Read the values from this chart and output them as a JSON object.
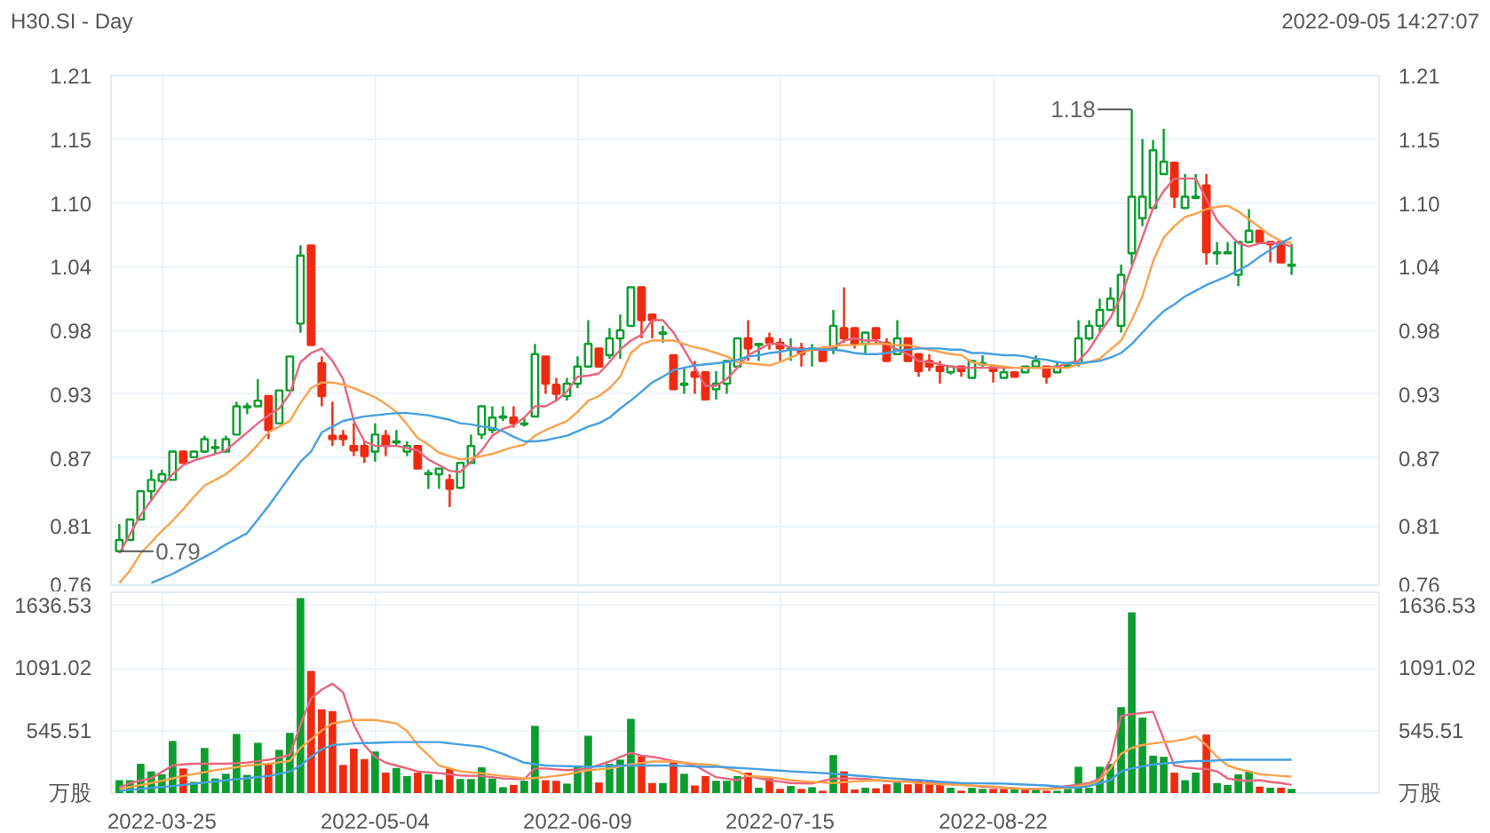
{
  "chart_data": [
    {
      "type": "candlestick",
      "title": "H30.SI - Day",
      "annotations": [
        "2022-09-05 14:27:07",
        "0.79",
        "1.18"
      ],
      "categories": [
        null,
        null,
        null,
        null,
        "2022-03-25",
        null,
        null,
        null,
        null,
        null,
        null,
        null,
        null,
        null,
        null,
        null,
        null,
        null,
        null,
        null,
        null,
        null,
        null,
        null,
        "2022-05-04",
        null,
        null,
        null,
        null,
        null,
        null,
        null,
        null,
        null,
        null,
        null,
        null,
        null,
        null,
        null,
        null,
        null,
        null,
        "2022-06-09",
        null,
        null,
        null,
        null,
        null,
        null,
        null,
        null,
        null,
        null,
        null,
        null,
        null,
        null,
        null,
        null,
        null,
        null,
        "2022-07-15",
        null,
        null,
        null,
        null,
        null,
        null,
        null,
        null,
        null,
        null,
        null,
        null,
        null,
        null,
        null,
        null,
        null,
        null,
        null,
        "2022-08-22",
        null,
        null,
        null,
        null,
        null,
        null,
        null,
        null,
        null,
        null,
        null,
        null,
        null,
        null,
        null,
        null,
        null,
        null,
        null,
        null,
        null,
        null,
        null,
        null,
        null,
        null,
        null,
        null
      ],
      "ohlc": [
        [
          0.79,
          0.814,
          0.79,
          0.8
        ],
        [
          0.8,
          0.818,
          0.8,
          0.818
        ],
        [
          0.818,
          0.843,
          0.818,
          0.843
        ],
        [
          0.843,
          0.862,
          0.834,
          0.853
        ],
        [
          0.852,
          0.862,
          0.85,
          0.858
        ],
        [
          0.853,
          0.878,
          0.853,
          0.878
        ],
        [
          0.878,
          0.878,
          0.868,
          0.868
        ],
        [
          0.873,
          0.878,
          0.873,
          0.878
        ],
        [
          0.878,
          0.892,
          0.877,
          0.889
        ],
        [
          0.881,
          0.889,
          0.875,
          0.882
        ],
        [
          0.878,
          0.892,
          0.878,
          0.889
        ],
        [
          0.893,
          0.922,
          0.893,
          0.918
        ],
        [
          0.917,
          0.921,
          0.911,
          0.918
        ],
        [
          0.918,
          0.942,
          0.918,
          0.923
        ],
        [
          0.927,
          0.927,
          0.889,
          0.897
        ],
        [
          0.903,
          0.932,
          0.903,
          0.932
        ],
        [
          0.932,
          0.962,
          0.932,
          0.962
        ],
        [
          0.991,
          1.06,
          0.983,
          1.051
        ],
        [
          1.06,
          1.06,
          0.972,
          0.972
        ],
        [
          0.956,
          0.962,
          0.918,
          0.927
        ],
        [
          0.892,
          0.922,
          0.883,
          0.889
        ],
        [
          0.892,
          0.897,
          0.883,
          0.889
        ],
        [
          0.883,
          0.903,
          0.874,
          0.879
        ],
        [
          0.883,
          0.887,
          0.868,
          0.874
        ],
        [
          0.878,
          0.903,
          0.869,
          0.893
        ],
        [
          0.892,
          0.897,
          0.874,
          0.883
        ],
        [
          0.886,
          0.897,
          0.883,
          0.887
        ],
        [
          0.878,
          0.887,
          0.874,
          0.883
        ],
        [
          0.883,
          0.883,
          0.863,
          0.863
        ],
        [
          0.858,
          0.862,
          0.845,
          0.859
        ],
        [
          0.858,
          0.863,
          0.845,
          0.863
        ],
        [
          0.853,
          0.858,
          0.829,
          0.845
        ],
        [
          0.846,
          0.868,
          0.845,
          0.868
        ],
        [
          0.868,
          0.893,
          0.868,
          0.883
        ],
        [
          0.893,
          0.918,
          0.889,
          0.918
        ],
        [
          0.897,
          0.918,
          0.894,
          0.908
        ],
        [
          0.908,
          0.918,
          0.905,
          0.909
        ],
        [
          0.908,
          0.918,
          0.899,
          0.903
        ],
        [
          0.902,
          0.908,
          0.9,
          0.903
        ],
        [
          0.909,
          0.973,
          0.909,
          0.964
        ],
        [
          0.962,
          0.962,
          0.929,
          0.938
        ],
        [
          0.937,
          0.943,
          0.923,
          0.929
        ],
        [
          0.927,
          0.943,
          0.923,
          0.938
        ],
        [
          0.938,
          0.962,
          0.934,
          0.953
        ],
        [
          0.953,
          0.994,
          0.953,
          0.973
        ],
        [
          0.969,
          0.969,
          0.953,
          0.953
        ],
        [
          0.963,
          0.987,
          0.96,
          0.978
        ],
        [
          0.978,
          0.999,
          0.96,
          0.985
        ],
        [
          0.989,
          1.023,
          0.989,
          1.023
        ],
        [
          1.023,
          1.023,
          0.978,
          0.994
        ],
        [
          0.999,
          0.999,
          0.978,
          0.994
        ],
        [
          0.982,
          0.989,
          0.974,
          0.983
        ],
        [
          0.963,
          0.963,
          0.933,
          0.933
        ],
        [
          0.937,
          0.952,
          0.929,
          0.938
        ],
        [
          0.948,
          0.958,
          0.929,
          0.944
        ],
        [
          0.948,
          0.948,
          0.924,
          0.924
        ],
        [
          0.933,
          0.949,
          0.924,
          0.938
        ],
        [
          0.938,
          0.958,
          0.929,
          0.958
        ],
        [
          0.953,
          0.978,
          0.952,
          0.978
        ],
        [
          0.978,
          0.994,
          0.958,
          0.969
        ],
        [
          0.972,
          0.973,
          0.958,
          0.973
        ],
        [
          0.978,
          0.983,
          0.968,
          0.974
        ],
        [
          0.974,
          0.978,
          0.958,
          0.969
        ],
        [
          0.968,
          0.978,
          0.958,
          0.969
        ],
        [
          0.969,
          0.974,
          0.953,
          0.964
        ],
        [
          0.968,
          0.973,
          0.953,
          0.969
        ],
        [
          0.969,
          0.969,
          0.958,
          0.958
        ],
        [
          0.969,
          1.003,
          0.964,
          0.989
        ],
        [
          0.987,
          1.023,
          0.974,
          0.978
        ],
        [
          0.987,
          0.987,
          0.969,
          0.973
        ],
        [
          0.973,
          0.983,
          0.964,
          0.983
        ],
        [
          0.987,
          0.987,
          0.974,
          0.978
        ],
        [
          0.974,
          0.978,
          0.958,
          0.958
        ],
        [
          0.964,
          0.994,
          0.964,
          0.978
        ],
        [
          0.978,
          0.978,
          0.958,
          0.958
        ],
        [
          0.964,
          0.964,
          0.944,
          0.949
        ],
        [
          0.958,
          0.964,
          0.949,
          0.953
        ],
        [
          0.953,
          0.958,
          0.938,
          0.949
        ],
        [
          0.948,
          0.953,
          0.946,
          0.953
        ],
        [
          0.953,
          0.953,
          0.944,
          0.949
        ],
        [
          0.943,
          0.958,
          0.943,
          0.958
        ],
        [
          0.955,
          0.963,
          0.953,
          0.956
        ],
        [
          0.953,
          0.953,
          0.939,
          0.949
        ],
        [
          0.943,
          0.952,
          0.943,
          0.948
        ],
        [
          0.948,
          0.948,
          0.944,
          0.944
        ],
        [
          0.948,
          0.953,
          0.948,
          0.953
        ],
        [
          0.953,
          0.963,
          0.953,
          0.958
        ],
        [
          0.953,
          0.953,
          0.938,
          0.944
        ],
        [
          0.948,
          0.958,
          0.948,
          0.953
        ],
        [
          0.953,
          0.955,
          0.952,
          0.954
        ],
        [
          0.956,
          0.994,
          0.953,
          0.978
        ],
        [
          0.978,
          0.994,
          0.976,
          0.989
        ],
        [
          0.989,
          1.013,
          0.983,
          1.003
        ],
        [
          1.003,
          1.023,
          1.003,
          1.013
        ],
        [
          0.989,
          1.043,
          0.983,
          1.034
        ],
        [
          1.053,
          1.18,
          1.043,
          1.103
        ],
        [
          1.084,
          1.154,
          1.077,
          1.103
        ],
        [
          1.093,
          1.153,
          1.093,
          1.144
        ],
        [
          1.123,
          1.163,
          1.123,
          1.134
        ],
        [
          1.133,
          1.133,
          1.093,
          1.103
        ],
        [
          1.093,
          1.123,
          1.093,
          1.103
        ],
        [
          1.102,
          1.123,
          1.102,
          1.103
        ],
        [
          1.113,
          1.123,
          1.043,
          1.054
        ],
        [
          1.053,
          1.063,
          1.043,
          1.054
        ],
        [
          1.053,
          1.063,
          1.053,
          1.054
        ],
        [
          1.034,
          1.063,
          1.024,
          1.063
        ],
        [
          1.063,
          1.092,
          1.062,
          1.073
        ],
        [
          1.073,
          1.073,
          1.063,
          1.063
        ],
        [
          1.063,
          1.063,
          1.045,
          1.061
        ],
        [
          1.063,
          1.063,
          1.045,
          1.045
        ],
        [
          1.042,
          1.061,
          1.034,
          1.043
        ]
      ],
      "colors": [
        "#0c9d2f",
        "#0c9d2f",
        "#0c9d2f",
        "#0c9d2f",
        "#0c9d2f",
        "#0c9d2f",
        "#ee2b10",
        "#0c9d2f",
        "#0c9d2f",
        "#0c9d2f",
        "#0c9d2f",
        "#0c9d2f",
        "#0c9d2f",
        "#0c9d2f",
        "#ee2b10",
        "#0c9d2f",
        "#0c9d2f",
        "#0c9d2f",
        "#ee2b10",
        "#ee2b10",
        "#ee2b10",
        "#ee2b10",
        "#ee2b10",
        "#ee2b10",
        "#0c9d2f",
        "#ee2b10",
        "#0c9d2f",
        "#0c9d2f",
        "#ee2b10",
        "#0c9d2f",
        "#0c9d2f",
        "#ee2b10",
        "#0c9d2f",
        "#0c9d2f",
        "#0c9d2f",
        "#0c9d2f",
        "#0c9d2f",
        "#ee2b10",
        "#0c9d2f",
        "#0c9d2f",
        "#ee2b10",
        "#ee2b10",
        "#0c9d2f",
        "#0c9d2f",
        "#0c9d2f",
        "#ee2b10",
        "#0c9d2f",
        "#0c9d2f",
        "#0c9d2f",
        "#ee2b10",
        "#ee2b10",
        "#0c9d2f",
        "#ee2b10",
        "#0c9d2f",
        "#ee2b10",
        "#ee2b10",
        "#0c9d2f",
        "#0c9d2f",
        "#0c9d2f",
        "#ee2b10",
        "#0c9d2f",
        "#ee2b10",
        "#ee2b10",
        "#0c9d2f",
        "#ee2b10",
        "#0c9d2f",
        "#ee2b10",
        "#0c9d2f",
        "#ee2b10",
        "#ee2b10",
        "#0c9d2f",
        "#ee2b10",
        "#ee2b10",
        "#0c9d2f",
        "#ee2b10",
        "#ee2b10",
        "#ee2b10",
        "#ee2b10",
        "#0c9d2f",
        "#ee2b10",
        "#0c9d2f",
        "#0c9d2f",
        "#ee2b10",
        "#0c9d2f",
        "#ee2b10",
        "#0c9d2f",
        "#0c9d2f",
        "#ee2b10",
        "#0c9d2f",
        "#0c9d2f",
        "#0c9d2f",
        "#0c9d2f",
        "#0c9d2f",
        "#0c9d2f",
        "#0c9d2f",
        "#0c9d2f",
        "#0c9d2f",
        "#0c9d2f",
        "#0c9d2f",
        "#ee2b10",
        "#0c9d2f",
        "#0c9d2f",
        "#ee2b10",
        "#0c9d2f",
        "#0c9d2f",
        "#0c9d2f",
        "#0c9d2f",
        "#ee2b10",
        "#ee2b10",
        "#ee2b10",
        "#0c9d2f"
      ],
      "series": [
        {
          "type": "line",
          "color": "#e8667e",
          "values": [
            0.788,
            0.805,
            0.822,
            0.835,
            0.848,
            0.858,
            0.866,
            0.87,
            0.873,
            0.876,
            0.879,
            0.887,
            0.895,
            0.903,
            0.91,
            0.916,
            0.929,
            0.957,
            0.965,
            0.969,
            0.958,
            0.942,
            0.905,
            0.887,
            0.883,
            0.883,
            0.883,
            0.881,
            0.879,
            0.871,
            0.866,
            0.861,
            0.86,
            0.869,
            0.879,
            0.892,
            0.898,
            0.901,
            0.908,
            0.918,
            0.918,
            0.923,
            0.931,
            0.944,
            0.945,
            0.947,
            0.957,
            0.968,
            0.976,
            0.981,
            0.994,
            0.994,
            0.983,
            0.968,
            0.952,
            0.936,
            0.936,
            0.942,
            0.952,
            0.963,
            0.968,
            0.973,
            0.973,
            0.97,
            0.968,
            0.968,
            0.968,
            0.97,
            0.976,
            0.978,
            0.976,
            0.976,
            0.973,
            0.968,
            0.964,
            0.958,
            0.957,
            0.955,
            0.953,
            0.952,
            0.952,
            0.952,
            0.952,
            0.952,
            0.952,
            0.952,
            0.952,
            0.952,
            0.953,
            0.956,
            0.958,
            0.968,
            0.983,
            0.996,
            1.015,
            1.041,
            1.067,
            1.093,
            1.108,
            1.119,
            1.119,
            1.119,
            1.101,
            1.082,
            1.072,
            1.062,
            1.059,
            1.062,
            1.062,
            1.062,
            1.059
          ]
        },
        {
          "type": "line",
          "color": "#fba24c",
          "values": [
            0.762,
            0.773,
            0.788,
            0.798,
            0.808,
            0.817,
            0.827,
            0.838,
            0.848,
            0.853,
            0.858,
            0.866,
            0.874,
            0.884,
            0.895,
            0.9,
            0.905,
            0.921,
            0.934,
            0.939,
            0.939,
            0.937,
            0.934,
            0.93,
            0.926,
            0.92,
            0.913,
            0.902,
            0.89,
            0.884,
            0.877,
            0.874,
            0.871,
            0.872,
            0.874,
            0.876,
            0.879,
            0.882,
            0.884,
            0.892,
            0.897,
            0.901,
            0.905,
            0.913,
            0.923,
            0.927,
            0.934,
            0.944,
            0.965,
            0.973,
            0.976,
            0.976,
            0.976,
            0.973,
            0.97,
            0.968,
            0.965,
            0.962,
            0.957,
            0.956,
            0.955,
            0.954,
            0.957,
            0.961,
            0.965,
            0.968,
            0.97,
            0.971,
            0.972,
            0.972,
            0.973,
            0.973,
            0.973,
            0.972,
            0.972,
            0.97,
            0.968,
            0.966,
            0.964,
            0.963,
            0.957,
            0.955,
            0.954,
            0.953,
            0.952,
            0.952,
            0.952,
            0.952,
            0.952,
            0.952,
            0.955,
            0.957,
            0.96,
            0.968,
            0.976,
            0.994,
            1.015,
            1.046,
            1.067,
            1.077,
            1.085,
            1.088,
            1.092,
            1.094,
            1.095,
            1.09,
            1.083,
            1.076,
            1.069,
            1.064,
            1.062
          ]
        },
        {
          "type": "line",
          "color": "#46a0e0",
          "values": [
            null,
            null,
            null,
            0.762,
            0.766,
            0.77,
            0.775,
            0.78,
            0.785,
            0.79,
            0.796,
            0.801,
            0.806,
            0.818,
            0.83,
            0.843,
            0.856,
            0.869,
            0.878,
            0.895,
            0.9,
            0.905,
            0.907,
            0.909,
            0.91,
            0.911,
            0.912,
            0.912,
            0.911,
            0.91,
            0.908,
            0.906,
            0.903,
            0.902,
            0.9,
            0.899,
            0.896,
            0.891,
            0.887,
            0.887,
            0.888,
            0.89,
            0.892,
            0.896,
            0.9,
            0.903,
            0.908,
            0.916,
            0.923,
            0.931,
            0.939,
            0.944,
            0.95,
            0.952,
            0.954,
            0.955,
            0.956,
            0.957,
            0.959,
            0.962,
            0.963,
            0.965,
            0.966,
            0.968,
            0.968,
            0.969,
            0.968,
            0.968,
            0.967,
            0.965,
            0.964,
            0.964,
            0.965,
            0.967,
            0.968,
            0.969,
            0.969,
            0.969,
            0.968,
            0.968,
            0.965,
            0.965,
            0.964,
            0.963,
            0.963,
            0.962,
            0.96,
            0.959,
            0.957,
            0.956,
            0.956,
            0.957,
            0.958,
            0.961,
            0.965,
            0.973,
            0.983,
            0.993,
            1.002,
            1.008,
            1.015,
            1.02,
            1.025,
            1.029,
            1.033,
            1.038,
            1.043,
            1.05,
            1.056,
            1.062,
            1.067
          ]
        }
      ],
      "ylim": [
        0.76,
        1.21
      ],
      "yticks": [
        0.76,
        {
          "value": 0.8125,
          "label": "0.81"
        },
        {
          "value": 0.8725,
          "label": "0.87"
        },
        {
          "value": 0.92875,
          "label": "0.93"
        },
        {
          "value": 0.985,
          "label": "0.98"
        },
        {
          "value": 1.04125,
          "label": "1.04"
        },
        {
          "value": 1.0975,
          "label": "1.10"
        },
        {
          "value": 1.15375,
          "label": "1.15"
        },
        1.21
      ],
      "y2lim": [
        0.76,
        1.21
      ],
      "y2ticks": [
        0.76,
        {
          "value": 0.8125,
          "label": "0.81"
        },
        {
          "value": 0.8725,
          "label": "0.87"
        },
        {
          "value": 0.92875,
          "label": "0.93"
        },
        {
          "value": 0.985,
          "label": "0.98"
        },
        {
          "value": 1.04125,
          "label": "1.04"
        },
        {
          "value": 1.0975,
          "label": "1.10"
        },
        {
          "value": 1.15375,
          "label": "1.15"
        },
        1.21
      ],
      "grid": true,
      "tick_labels": "y"
    },
    {
      "type": "bar",
      "categories": [
        null,
        null,
        null,
        null,
        "2022-03-25",
        null,
        null,
        null,
        null,
        null,
        null,
        null,
        null,
        null,
        null,
        null,
        null,
        null,
        null,
        null,
        null,
        null,
        null,
        null,
        "2022-05-04",
        null,
        null,
        null,
        null,
        null,
        null,
        null,
        null,
        null,
        null,
        null,
        null,
        null,
        null,
        null,
        null,
        null,
        null,
        "2022-06-09",
        null,
        null,
        null,
        null,
        null,
        null,
        null,
        null,
        null,
        null,
        null,
        null,
        null,
        null,
        null,
        null,
        null,
        null,
        "2022-07-15",
        null,
        null,
        null,
        null,
        null,
        null,
        null,
        null,
        null,
        null,
        null,
        null,
        null,
        null,
        null,
        null,
        null,
        null,
        null,
        "2022-08-22",
        null,
        null,
        null,
        null,
        null,
        null,
        null,
        null,
        null,
        null,
        null,
        null,
        null,
        null,
        null,
        null,
        null,
        null,
        null,
        null,
        null,
        null,
        null,
        null,
        null,
        null,
        null,
        null
      ],
      "series": [
        {
          "values": [
            112,
            112,
            255,
            189,
            163,
            454,
            214,
            97,
            393,
            127,
            168,
            515,
            158,
            438,
            255,
            377,
            525,
            1700,
            1065,
            729,
            714,
            245,
            387,
            296,
            362,
            178,
            219,
            148,
            178,
            163,
            117,
            214,
            122,
            122,
            224,
            127,
            51,
            71,
            107,
            586,
            112,
            107,
            82,
            235,
            500,
            92,
            255,
            291,
            647,
            321,
            87,
            87,
            275,
            168,
            66,
            148,
            107,
            107,
            148,
            178,
            46,
            138,
            36,
            61,
            36,
            51,
            20,
            331,
            189,
            31,
            46,
            41,
            76,
            102,
            76,
            112,
            112,
            87,
            46,
            20,
            46,
            36,
            36,
            36,
            36,
            36,
            36,
            20,
            20,
            36,
            229,
            46,
            229,
            255,
            749,
            1575,
            658,
            326,
            316,
            178,
            112,
            178,
            510,
            87,
            71,
            163,
            189,
            56,
            46,
            46,
            36
          ],
          "colors": [
            "#0c9d2f",
            "#0c9d2f",
            "#0c9d2f",
            "#0c9d2f",
            "#0c9d2f",
            "#0c9d2f",
            "#ee2b10",
            "#0c9d2f",
            "#0c9d2f",
            "#0c9d2f",
            "#0c9d2f",
            "#0c9d2f",
            "#0c9d2f",
            "#0c9d2f",
            "#ee2b10",
            "#0c9d2f",
            "#0c9d2f",
            "#0c9d2f",
            "#ee2b10",
            "#ee2b10",
            "#ee2b10",
            "#ee2b10",
            "#ee2b10",
            "#ee2b10",
            "#0c9d2f",
            "#ee2b10",
            "#0c9d2f",
            "#0c9d2f",
            "#ee2b10",
            "#0c9d2f",
            "#0c9d2f",
            "#ee2b10",
            "#0c9d2f",
            "#0c9d2f",
            "#0c9d2f",
            "#0c9d2f",
            "#0c9d2f",
            "#ee2b10",
            "#0c9d2f",
            "#0c9d2f",
            "#ee2b10",
            "#ee2b10",
            "#0c9d2f",
            "#0c9d2f",
            "#0c9d2f",
            "#ee2b10",
            "#0c9d2f",
            "#0c9d2f",
            "#0c9d2f",
            "#ee2b10",
            "#ee2b10",
            "#0c9d2f",
            "#ee2b10",
            "#0c9d2f",
            "#ee2b10",
            "#ee2b10",
            "#0c9d2f",
            "#0c9d2f",
            "#0c9d2f",
            "#ee2b10",
            "#0c9d2f",
            "#ee2b10",
            "#ee2b10",
            "#0c9d2f",
            "#ee2b10",
            "#0c9d2f",
            "#ee2b10",
            "#0c9d2f",
            "#ee2b10",
            "#ee2b10",
            "#0c9d2f",
            "#ee2b10",
            "#ee2b10",
            "#0c9d2f",
            "#ee2b10",
            "#ee2b10",
            "#ee2b10",
            "#ee2b10",
            "#0c9d2f",
            "#ee2b10",
            "#0c9d2f",
            "#0c9d2f",
            "#ee2b10",
            "#ee2b10",
            "#0c9d2f",
            "#ee2b10",
            "#0c9d2f",
            "#ee2b10",
            "#0c9d2f",
            "#0c9d2f",
            "#0c9d2f",
            "#0c9d2f",
            "#0c9d2f",
            "#0c9d2f",
            "#0c9d2f",
            "#0c9d2f",
            "#0c9d2f",
            "#0c9d2f",
            "#0c9d2f",
            "#ee2b10",
            "#0c9d2f",
            "#0c9d2f",
            "#ee2b10",
            "#0c9d2f",
            "#0c9d2f",
            "#0c9d2f",
            "#0c9d2f",
            "#ee2b10",
            "#0c9d2f",
            "#ee2b10",
            "#0c9d2f"
          ]
        },
        {
          "type": "line",
          "color": "#e8667e",
          "values": [
            46,
            87,
            110,
            127,
            185,
            240,
            250,
            255,
            255,
            255,
            255,
            260,
            265,
            278,
            290,
            310,
            331,
            596,
            826,
            902,
            953,
            877,
            596,
            418,
            316,
            265,
            240,
            215,
            189,
            180,
            173,
            163,
            153,
            150,
            148,
            138,
            127,
            125,
            122,
            214,
            214,
            206,
            199,
            205,
            214,
            245,
            275,
            314,
            352,
            326,
            316,
            298,
            280,
            260,
            240,
            190,
            138,
            125,
            112,
            148,
            130,
            112,
            100,
            87,
            85,
            82,
            105,
            127,
            127,
            127,
            122,
            112,
            105,
            97,
            105,
            112,
            100,
            87,
            79,
            71,
            65,
            56,
            51,
            46,
            41,
            36,
            36,
            36,
            48,
            61,
            74,
            87,
            127,
            290,
            673,
            688,
            698,
            709,
            469,
            240,
            224,
            214,
            210,
            189,
            127,
            112,
            107,
            112,
            97,
            87,
            71
          ]
        },
        {
          "type": "line",
          "color": "#fba24c",
          "values": [
            36,
            53,
            70,
            87,
            107,
            128,
            148,
            165,
            182,
            199,
            212,
            226,
            240,
            248,
            255,
            268,
            280,
            393,
            469,
            545,
            607,
            622,
            637,
            637,
            637,
            622,
            607,
            540,
            418,
            330,
            240,
            215,
            189,
            180,
            173,
            160,
            148,
            138,
            127,
            132,
            138,
            150,
            163,
            181,
            199,
            206,
            214,
            232,
            250,
            262,
            275,
            275,
            275,
            265,
            255,
            250,
            240,
            215,
            189,
            148,
            143,
            138,
            125,
            112,
            105,
            97,
            92,
            87,
            95,
            102,
            107,
            112,
            107,
            102,
            97,
            87,
            82,
            76,
            74,
            71,
            66,
            61,
            56,
            46,
            41,
            36,
            36,
            36,
            41,
            46,
            61,
            76,
            112,
            214,
            342,
            393,
            418,
            433,
            444,
            454,
            469,
            495,
            418,
            316,
            240,
            209,
            189,
            163,
            158,
            148,
            143
          ]
        },
        {
          "type": "line",
          "color": "#46a0e0",
          "values": [
            20,
            28,
            36,
            45,
            53,
            61,
            71,
            81,
            92,
            102,
            112,
            121,
            130,
            139,
            148,
            168,
            189,
            240,
            316,
            382,
            418,
            425,
            433,
            436,
            438,
            441,
            444,
            444,
            444,
            444,
            444,
            434,
            423,
            413,
            403,
            372,
            342,
            303,
            265,
            252,
            240,
            237,
            234,
            232,
            229,
            232,
            235,
            238,
            240,
            240,
            240,
            240,
            240,
            235,
            232,
            229,
            229,
            224,
            219,
            214,
            208,
            201,
            195,
            189,
            184,
            179,
            174,
            168,
            161,
            153,
            145,
            138,
            131,
            125,
            118,
            112,
            106,
            99,
            93,
            87,
            86,
            84,
            83,
            82,
            78,
            74,
            70,
            66,
            58,
            51,
            46,
            61,
            87,
            112,
            189,
            214,
            232,
            250,
            258,
            265,
            275,
            280,
            280,
            285,
            290,
            290,
            290,
            290,
            290,
            290,
            290
          ]
        }
      ],
      "ylim": [
        0,
        1750
      ],
      "yticks": [
        {
          "value": 0,
          "label": "万股"
        },
        545.51,
        1091.02,
        1636.53
      ],
      "y2lim": [
        0,
        1750
      ],
      "y2ticks": [
        {
          "value": 0,
          "label": "万股"
        },
        545.51,
        1091.02,
        1636.53
      ],
      "grid": true
    }
  ]
}
